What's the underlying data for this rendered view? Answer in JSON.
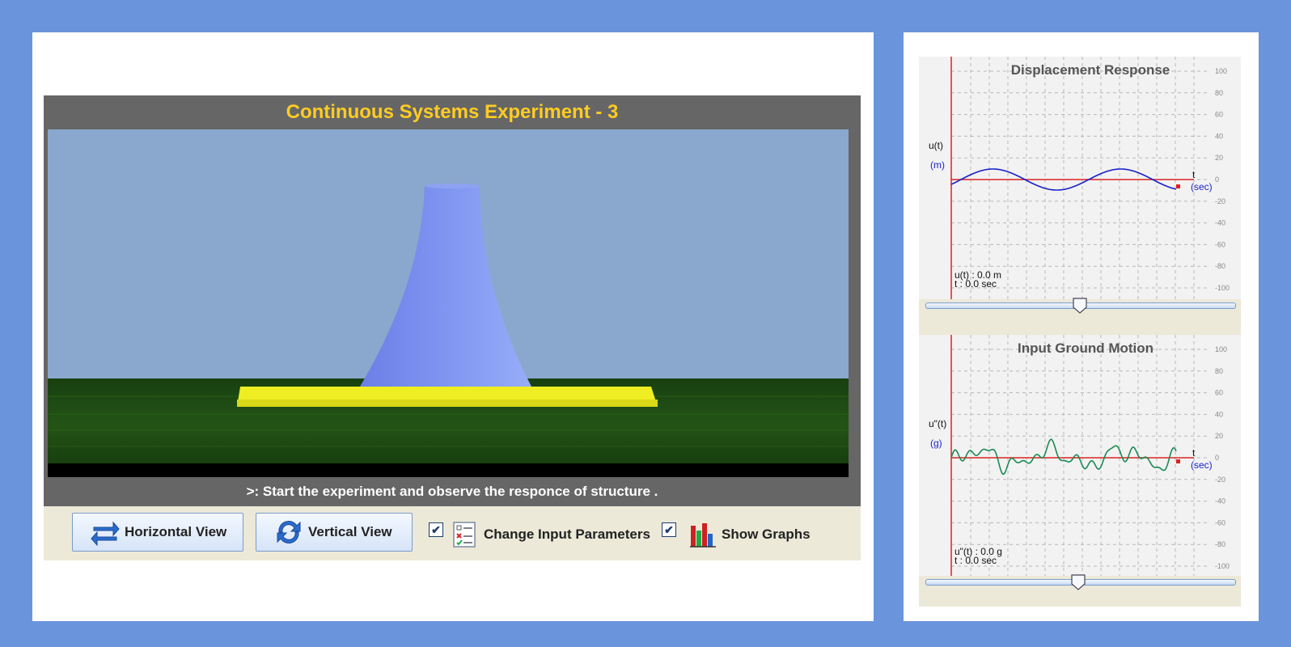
{
  "simulation": {
    "title": "Continuous Systems Experiment - 3",
    "instruction": ">: Start the experiment and observe the responce of structure ."
  },
  "controls": {
    "horizontal_view_label": "Horizontal View",
    "vertical_view_label": "Vertical View",
    "change_input_checked": true,
    "change_input_label": "Change Input Parameters",
    "show_graphs_checked": true,
    "show_graphs_label": "Show Graphs",
    "check_mark": "✔"
  },
  "graphs": {
    "displacement": {
      "title": "Displacement Response",
      "ylabel": "u(t)",
      "yunit": "(m)",
      "xlabel": "t",
      "xunit": "(sec)",
      "readout_value": "u(t) : 0.0 m",
      "readout_time": "t  : 0.0 sec",
      "yticks": [
        "100",
        "80",
        "60",
        "40",
        "20",
        "0",
        "-20",
        "-40",
        "-60",
        "-80",
        "-100"
      ],
      "slider_value": 0.5
    },
    "ground_motion": {
      "title": "Input Ground Motion",
      "ylabel": "u\"(t)",
      "yunit": "(g)",
      "xlabel": "t",
      "xunit": "(sec)",
      "readout_value": "u\"(t) : 0.0 g",
      "readout_time": "t : 0.0 sec",
      "yticks": [
        "100",
        "80",
        "60",
        "40",
        "20",
        "0",
        "-20",
        "-40",
        "-60",
        "-80",
        "-100"
      ],
      "slider_value": 0.5
    }
  },
  "colors": {
    "title": "#ffcc22",
    "sky": "#8aa8ce",
    "ground": "#1f4a12",
    "platform": "#eeee22",
    "tower": "#7f95ee",
    "displacement_curve": "#1a22cc",
    "ground_motion_curve": "#1a8a55",
    "axis_red": "#dd2222"
  }
}
